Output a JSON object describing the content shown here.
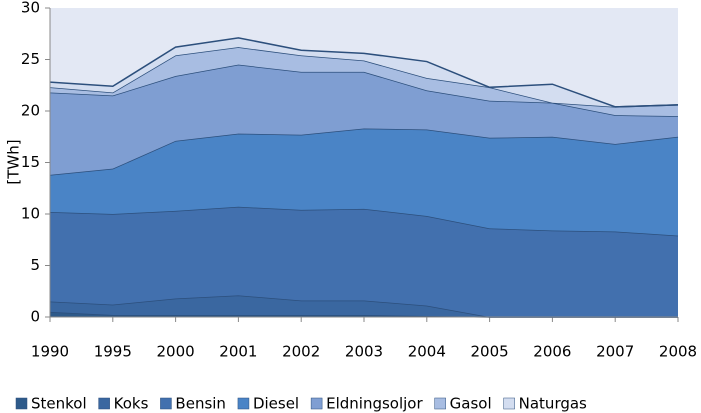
{
  "chart_data": {
    "type": "stacked_area",
    "y_label": "[TWh]",
    "categories": [
      "1990",
      "1995",
      "2000",
      "2001",
      "2002",
      "2003",
      "2004",
      "2005",
      "2006",
      "2007",
      "2008"
    ],
    "series": [
      {
        "name": "Stenkol",
        "color": "#2e5a8a",
        "values": [
          0.5,
          0.2,
          0.2,
          0.2,
          0.2,
          0.2,
          0.1,
          0,
          0,
          0,
          0
        ]
      },
      {
        "name": "Koks",
        "color": "#3a67a0",
        "values": [
          1.0,
          1.0,
          1.6,
          1.9,
          1.4,
          1.4,
          1.0,
          0,
          0,
          0,
          0
        ]
      },
      {
        "name": "Bensin",
        "color": "#4270ae",
        "values": [
          8.7,
          8.8,
          8.5,
          8.6,
          8.8,
          8.9,
          8.7,
          8.6,
          8.4,
          8.3,
          7.9
        ]
      },
      {
        "name": "Diesel",
        "color": "#4a84c6",
        "values": [
          3.6,
          4.4,
          6.8,
          7.1,
          7.3,
          7.8,
          8.4,
          8.8,
          9.1,
          8.5,
          9.6
        ]
      },
      {
        "name": "Eldningsoljor",
        "color": "#7f9ed2",
        "values": [
          8.0,
          7.1,
          6.3,
          6.7,
          6.1,
          5.5,
          3.8,
          3.6,
          3.3,
          2.8,
          2.0
        ]
      },
      {
        "name": "Gasol",
        "color": "#a8bde2",
        "values": [
          0.5,
          0.3,
          2.0,
          1.7,
          1.6,
          1.1,
          1.2,
          1.3,
          0.0,
          0.8,
          1.1
        ]
      },
      {
        "name": "Naturgas",
        "color": "#d3ddf0",
        "values": [
          0.5,
          0.6,
          0.8,
          0.9,
          0.5,
          0.7,
          1.6,
          0.0,
          1.8,
          0.0,
          0.0
        ]
      }
    ],
    "ylim": [
      0,
      30
    ],
    "yticks": [
      0,
      5,
      10,
      15,
      20,
      25,
      30
    ],
    "grid": false
  }
}
